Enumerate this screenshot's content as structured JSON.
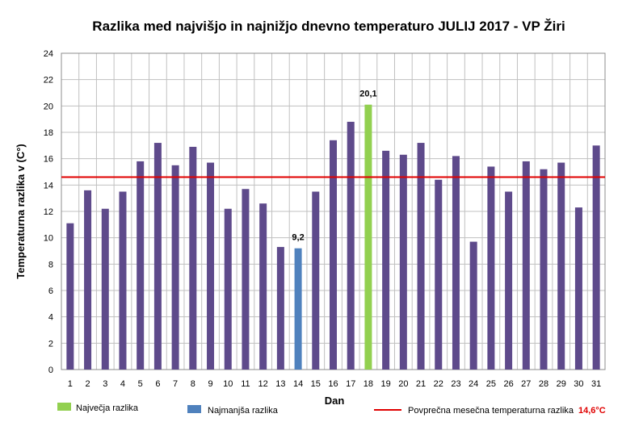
{
  "chart_data": {
    "type": "bar",
    "title": "Razlika med najvišjo in najnižjo dnevno temperaturo JULIJ 2017 - VP Žiri",
    "xlabel": "Dan",
    "ylabel": "Temperaturna razlika v (C°)",
    "ylim": [
      0,
      24
    ],
    "ytick_step": 2,
    "grid": true,
    "categories": [
      "1",
      "2",
      "3",
      "4",
      "5",
      "6",
      "7",
      "8",
      "9",
      "10",
      "11",
      "12",
      "13",
      "14",
      "15",
      "16",
      "17",
      "18",
      "19",
      "20",
      "21",
      "22",
      "23",
      "24",
      "25",
      "26",
      "27",
      "28",
      "29",
      "30",
      "31"
    ],
    "values": [
      11.1,
      13.6,
      12.2,
      13.5,
      15.8,
      17.2,
      15.5,
      16.9,
      15.7,
      12.2,
      13.7,
      12.6,
      9.3,
      9.2,
      13.5,
      17.4,
      18.8,
      20.1,
      16.6,
      16.3,
      17.2,
      14.4,
      16.2,
      9.7,
      15.4,
      13.5,
      15.8,
      15.2,
      15.7,
      12.3,
      17.0
    ],
    "max_day_index": 17,
    "min_day_index": 13,
    "max_label": "20,1",
    "min_label": "9,2",
    "average_value": 14.6,
    "average_label": "14,6°C",
    "colors": {
      "bar": "#5e4a8b",
      "max": "#92d050",
      "min": "#4f81bd",
      "average_line": "#e00000",
      "grid": "#c0c0c0"
    },
    "legend": {
      "max_label": "Največja razlika",
      "min_label": "Najmanjša razlika",
      "average_label": "Povprečna mesečna temperaturna razlika",
      "position": "bottom"
    }
  }
}
